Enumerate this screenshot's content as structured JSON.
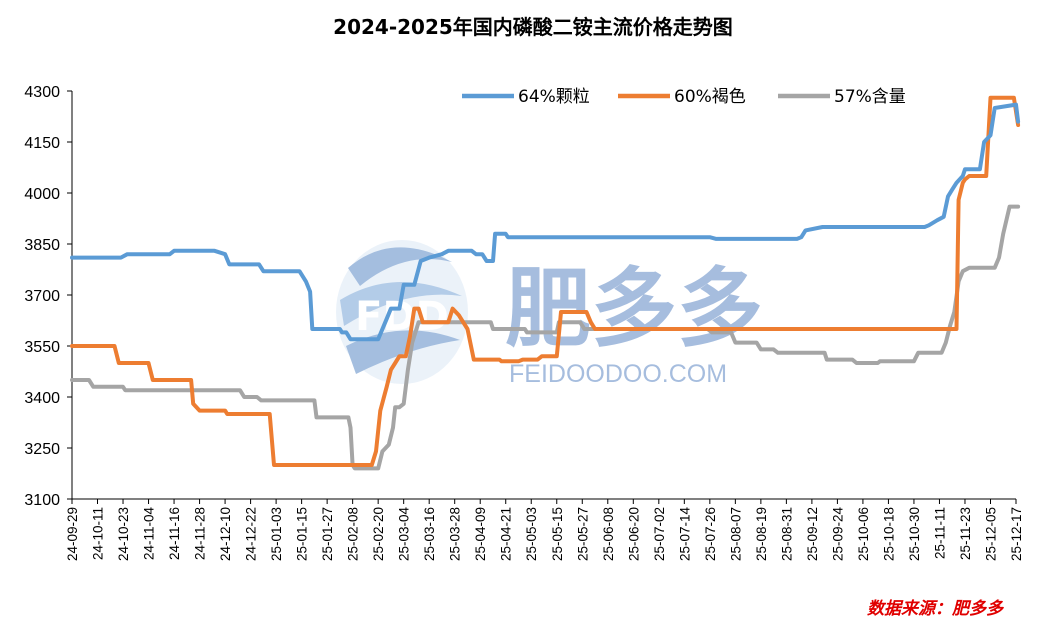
{
  "title": "2024-2025年国内磷酸二铵主流价格走势图",
  "source_text": "数据来源：肥多多",
  "watermark": {
    "brand": "肥多多",
    "site": "FEIDOODOO.COM",
    "logo_letters": "FDD"
  },
  "colors": {
    "s64": "#5b9bd5",
    "s60": "#ed7d31",
    "s57": "#a5a5a5",
    "watermark": "#5e88c4",
    "source": "#e00000"
  },
  "chart_data": {
    "type": "line",
    "title": "2024-2025年国内磷酸二铵主流价格走势图",
    "xlabel": "",
    "ylabel": "",
    "ylim": [
      3100,
      4300
    ],
    "yticks": [
      3100,
      3250,
      3400,
      3550,
      3700,
      3850,
      4000,
      4150,
      4300
    ],
    "x_range": [
      "24-09-29",
      "25-12-17"
    ],
    "x_tick_labels": [
      "24-09-29",
      "24-10-11",
      "24-10-23",
      "24-11-04",
      "24-11-16",
      "24-11-28",
      "24-12-10",
      "24-12-22",
      "25-01-03",
      "25-01-15",
      "25-01-27",
      "25-02-08",
      "25-02-20",
      "25-03-04",
      "25-03-16",
      "25-03-28",
      "25-04-09",
      "25-04-21",
      "25-05-03",
      "25-05-15",
      "25-05-27",
      "25-06-08",
      "25-06-20",
      "25-07-02",
      "25-07-14",
      "25-07-26",
      "25-08-07",
      "25-08-19",
      "25-08-31",
      "25-09-12",
      "25-09-24",
      "25-10-06",
      "25-10-18",
      "25-10-30",
      "25-11-11",
      "25-11-23",
      "25-12-05",
      "25-12-17"
    ],
    "grid": false,
    "legend_position": "top-right",
    "series": [
      {
        "name": "64%颗粒",
        "color": "#5b9bd5",
        "points": [
          [
            "2024-09-29",
            3810
          ],
          [
            "2024-10-22",
            3810
          ],
          [
            "2024-10-25",
            3820
          ],
          [
            "2024-11-14",
            3820
          ],
          [
            "2024-11-16",
            3830
          ],
          [
            "2024-12-05",
            3830
          ],
          [
            "2024-12-10",
            3820
          ],
          [
            "2024-12-12",
            3790
          ],
          [
            "2024-12-26",
            3790
          ],
          [
            "2024-12-28",
            3770
          ],
          [
            "2025-01-14",
            3770
          ],
          [
            "2025-01-17",
            3740
          ],
          [
            "2025-01-19",
            3710
          ],
          [
            "2025-01-20",
            3600
          ],
          [
            "2025-02-02",
            3600
          ],
          [
            "2025-02-03",
            3590
          ],
          [
            "2025-02-05",
            3590
          ],
          [
            "2025-02-07",
            3570
          ],
          [
            "2025-02-20",
            3570
          ],
          [
            "2025-02-24",
            3630
          ],
          [
            "2025-02-26",
            3660
          ],
          [
            "2025-03-02",
            3660
          ],
          [
            "2025-03-04",
            3730
          ],
          [
            "2025-03-09",
            3730
          ],
          [
            "2025-03-12",
            3800
          ],
          [
            "2025-03-16",
            3810
          ],
          [
            "2025-03-22",
            3820
          ],
          [
            "2025-03-25",
            3830
          ],
          [
            "2025-04-05",
            3830
          ],
          [
            "2025-04-07",
            3820
          ],
          [
            "2025-04-10",
            3820
          ],
          [
            "2025-04-12",
            3800
          ],
          [
            "2025-04-15",
            3800
          ],
          [
            "2025-04-16",
            3880
          ],
          [
            "2025-04-21",
            3880
          ],
          [
            "2025-04-22",
            3870
          ],
          [
            "2025-07-26",
            3870
          ],
          [
            "2025-07-29",
            3865
          ],
          [
            "2025-09-05",
            3865
          ],
          [
            "2025-09-07",
            3870
          ],
          [
            "2025-09-09",
            3890
          ],
          [
            "2025-09-17",
            3900
          ],
          [
            "2025-11-04",
            3900
          ],
          [
            "2025-11-06",
            3905
          ],
          [
            "2025-11-10",
            3920
          ],
          [
            "2025-11-13",
            3930
          ],
          [
            "2025-11-15",
            3990
          ],
          [
            "2025-11-17",
            4010
          ],
          [
            "2025-11-19",
            4030
          ],
          [
            "2025-11-22",
            4050
          ],
          [
            "2025-11-23",
            4070
          ],
          [
            "2025-11-30",
            4070
          ],
          [
            "2025-12-02",
            4150
          ],
          [
            "2025-12-05",
            4170
          ],
          [
            "2025-12-07",
            4250
          ],
          [
            "2025-12-17",
            4260
          ],
          [
            "2025-12-18",
            4210
          ]
        ]
      },
      {
        "name": "60%褐色",
        "color": "#ed7d31",
        "points": [
          [
            "2024-09-29",
            3550
          ],
          [
            "2024-10-19",
            3550
          ],
          [
            "2024-10-21",
            3500
          ],
          [
            "2024-11-04",
            3500
          ],
          [
            "2024-11-06",
            3450
          ],
          [
            "2024-11-24",
            3450
          ],
          [
            "2024-11-25",
            3380
          ],
          [
            "2024-11-28",
            3360
          ],
          [
            "2024-12-10",
            3360
          ],
          [
            "2024-12-11",
            3350
          ],
          [
            "2024-12-31",
            3350
          ],
          [
            "2025-01-02",
            3200
          ],
          [
            "2025-02-17",
            3200
          ],
          [
            "2025-02-19",
            3240
          ],
          [
            "2025-02-21",
            3360
          ],
          [
            "2025-02-24",
            3430
          ],
          [
            "2025-02-26",
            3480
          ],
          [
            "2025-02-28",
            3500
          ],
          [
            "2025-03-02",
            3520
          ],
          [
            "2025-03-05",
            3520
          ],
          [
            "2025-03-07",
            3580
          ],
          [
            "2025-03-09",
            3660
          ],
          [
            "2025-03-11",
            3660
          ],
          [
            "2025-03-13",
            3620
          ],
          [
            "2025-03-25",
            3620
          ],
          [
            "2025-03-27",
            3660
          ],
          [
            "2025-03-30",
            3640
          ],
          [
            "2025-04-01",
            3620
          ],
          [
            "2025-04-03",
            3600
          ],
          [
            "2025-04-06",
            3510
          ],
          [
            "2025-04-18",
            3510
          ],
          [
            "2025-04-19",
            3505
          ],
          [
            "2025-04-27",
            3505
          ],
          [
            "2025-04-29",
            3510
          ],
          [
            "2025-05-06",
            3510
          ],
          [
            "2025-05-08",
            3520
          ],
          [
            "2025-05-15",
            3520
          ],
          [
            "2025-05-17",
            3650
          ],
          [
            "2025-05-29",
            3650
          ],
          [
            "2025-05-31",
            3620
          ],
          [
            "2025-06-02",
            3600
          ],
          [
            "2025-11-19",
            3600
          ],
          [
            "2025-11-20",
            3980
          ],
          [
            "2025-11-22",
            4030
          ],
          [
            "2025-11-23",
            4040
          ],
          [
            "2025-11-25",
            4050
          ],
          [
            "2025-12-03",
            4050
          ],
          [
            "2025-12-05",
            4280
          ],
          [
            "2025-12-16",
            4280
          ],
          [
            "2025-12-18",
            4200
          ]
        ]
      },
      {
        "name": "57%含量",
        "color": "#a5a5a5",
        "points": [
          [
            "2024-09-29",
            3450
          ],
          [
            "2024-10-07",
            3450
          ],
          [
            "2024-10-09",
            3430
          ],
          [
            "2024-10-23",
            3430
          ],
          [
            "2024-10-24",
            3420
          ],
          [
            "2024-12-17",
            3420
          ],
          [
            "2024-12-19",
            3400
          ],
          [
            "2024-12-25",
            3400
          ],
          [
            "2024-12-27",
            3390
          ],
          [
            "2025-01-21",
            3390
          ],
          [
            "2025-01-22",
            3340
          ],
          [
            "2025-02-06",
            3340
          ],
          [
            "2025-02-07",
            3310
          ],
          [
            "2025-02-08",
            3200
          ],
          [
            "2025-02-09",
            3190
          ],
          [
            "2025-02-20",
            3190
          ],
          [
            "2025-02-22",
            3240
          ],
          [
            "2025-02-25",
            3260
          ],
          [
            "2025-02-27",
            3310
          ],
          [
            "2025-02-28",
            3370
          ],
          [
            "2025-03-02",
            3370
          ],
          [
            "2025-03-04",
            3380
          ],
          [
            "2025-03-05",
            3430
          ],
          [
            "2025-03-06",
            3480
          ],
          [
            "2025-03-08",
            3560
          ],
          [
            "2025-03-11",
            3620
          ],
          [
            "2025-04-14",
            3620
          ],
          [
            "2025-04-15",
            3600
          ],
          [
            "2025-04-30",
            3600
          ],
          [
            "2025-05-01",
            3590
          ],
          [
            "2025-05-15",
            3590
          ],
          [
            "2025-05-16",
            3620
          ],
          [
            "2025-05-26",
            3620
          ],
          [
            "2025-05-28",
            3600
          ],
          [
            "2025-07-25",
            3600
          ],
          [
            "2025-07-27",
            3590
          ],
          [
            "2025-08-05",
            3590
          ],
          [
            "2025-08-07",
            3560
          ],
          [
            "2025-08-17",
            3560
          ],
          [
            "2025-08-19",
            3540
          ],
          [
            "2025-08-25",
            3540
          ],
          [
            "2025-08-27",
            3530
          ],
          [
            "2025-09-18",
            3530
          ],
          [
            "2025-09-19",
            3510
          ],
          [
            "2025-10-01",
            3510
          ],
          [
            "2025-10-03",
            3500
          ],
          [
            "2025-10-13",
            3500
          ],
          [
            "2025-10-14",
            3505
          ],
          [
            "2025-10-30",
            3505
          ],
          [
            "2025-11-01",
            3530
          ],
          [
            "2025-11-12",
            3530
          ],
          [
            "2025-11-14",
            3560
          ],
          [
            "2025-11-16",
            3610
          ],
          [
            "2025-11-18",
            3650
          ],
          [
            "2025-11-20",
            3740
          ],
          [
            "2025-11-22",
            3770
          ],
          [
            "2025-11-25",
            3780
          ],
          [
            "2025-12-07",
            3780
          ],
          [
            "2025-12-09",
            3810
          ],
          [
            "2025-12-11",
            3880
          ],
          [
            "2025-12-14",
            3960
          ],
          [
            "2025-12-18",
            3960
          ]
        ]
      }
    ]
  }
}
